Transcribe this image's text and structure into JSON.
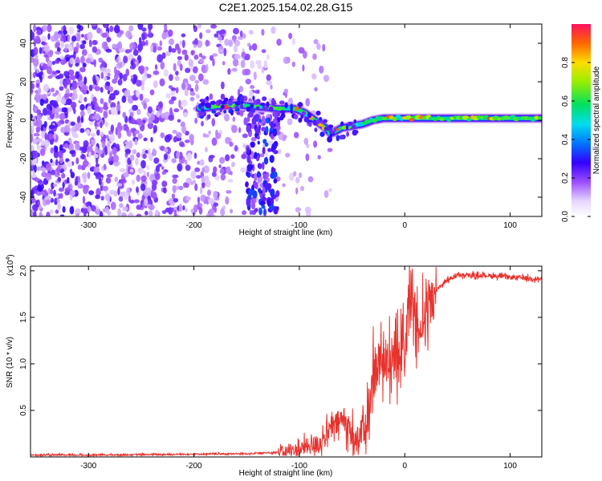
{
  "title": "C2E1.2025.154.02.28.G15",
  "chart_data": [
    {
      "type": "heatmap",
      "xlabel": "Height of straight line (km)",
      "ylabel": "Frequency (Hz)",
      "xlim": [
        -355,
        130
      ],
      "ylim": [
        -50,
        50
      ],
      "xticks": [
        -300,
        -200,
        -100,
        0,
        100
      ],
      "yticks": [
        -40,
        -20,
        0,
        20,
        40
      ],
      "colorbar": {
        "label": "Normalized spectral amplitude",
        "range": [
          0,
          1
        ],
        "ticks": [
          0.0,
          0.2,
          0.4,
          0.6,
          0.8
        ],
        "tick_labels": [
          "0.0",
          "0.2",
          "0.4",
          "0.6",
          "0.8"
        ]
      },
      "signal_track": {
        "description_points": [
          {
            "x": -195,
            "y": 6
          },
          {
            "x": -180,
            "y": 7
          },
          {
            "x": -160,
            "y": 8
          },
          {
            "x": -140,
            "y": 7
          },
          {
            "x": -120,
            "y": 6
          },
          {
            "x": -105,
            "y": 6
          },
          {
            "x": -95,
            "y": 4
          },
          {
            "x": -85,
            "y": 0
          },
          {
            "x": -75,
            "y": -4
          },
          {
            "x": -70,
            "y": -7
          },
          {
            "x": -60,
            "y": -4
          },
          {
            "x": -50,
            "y": -3
          },
          {
            "x": -40,
            "y": -2
          },
          {
            "x": -30,
            "y": 0
          },
          {
            "x": -20,
            "y": 1
          },
          {
            "x": -10,
            "y": 1
          },
          {
            "x": 0,
            "y": 1
          },
          {
            "x": 20,
            "y": 1
          },
          {
            "x": 50,
            "y": 1
          },
          {
            "x": 80,
            "y": 1
          },
          {
            "x": 110,
            "y": 1
          },
          {
            "x": 130,
            "y": 1
          }
        ],
        "peak_amplitude": 0.9
      },
      "noise_extent_x": [
        -355,
        -100
      ]
    },
    {
      "type": "line",
      "xlabel": "Height of straight line (km)",
      "ylabel": "SNR (10 * v/v)",
      "yscale_label": "(x10",
      "yscale_exponent": "4",
      "yscale_suffix": ")",
      "xlim": [
        -355,
        130
      ],
      "ylim": [
        0,
        2.05
      ],
      "xticks": [
        -300,
        -200,
        -100,
        0,
        100
      ],
      "yticks": [
        0.5,
        1.0,
        1.5,
        2.0
      ],
      "ytick_labels": [
        "0.5",
        "1.0",
        "1.5",
        "2.0"
      ],
      "series": [
        {
          "color": "#e8322d",
          "x": [
            -355,
            -300,
            -250,
            -200,
            -150,
            -120,
            -100,
            -90,
            -80,
            -70,
            -60,
            -55,
            -50,
            -45,
            -40,
            -35,
            -30,
            -25,
            -20,
            -15,
            -10,
            -5,
            0,
            5,
            10,
            15,
            20,
            25,
            30,
            40,
            50,
            60,
            80,
            100,
            120,
            130
          ],
          "y": [
            0.02,
            0.02,
            0.025,
            0.03,
            0.035,
            0.05,
            0.08,
            0.12,
            0.15,
            0.3,
            0.4,
            0.35,
            0.25,
            0.15,
            0.3,
            0.55,
            0.85,
            1.0,
            1.1,
            1.05,
            1.15,
            1.0,
            1.25,
            1.6,
            1.5,
            1.5,
            1.55,
            1.7,
            1.8,
            1.9,
            1.95,
            1.95,
            1.95,
            1.93,
            1.92,
            1.91
          ]
        }
      ]
    }
  ]
}
